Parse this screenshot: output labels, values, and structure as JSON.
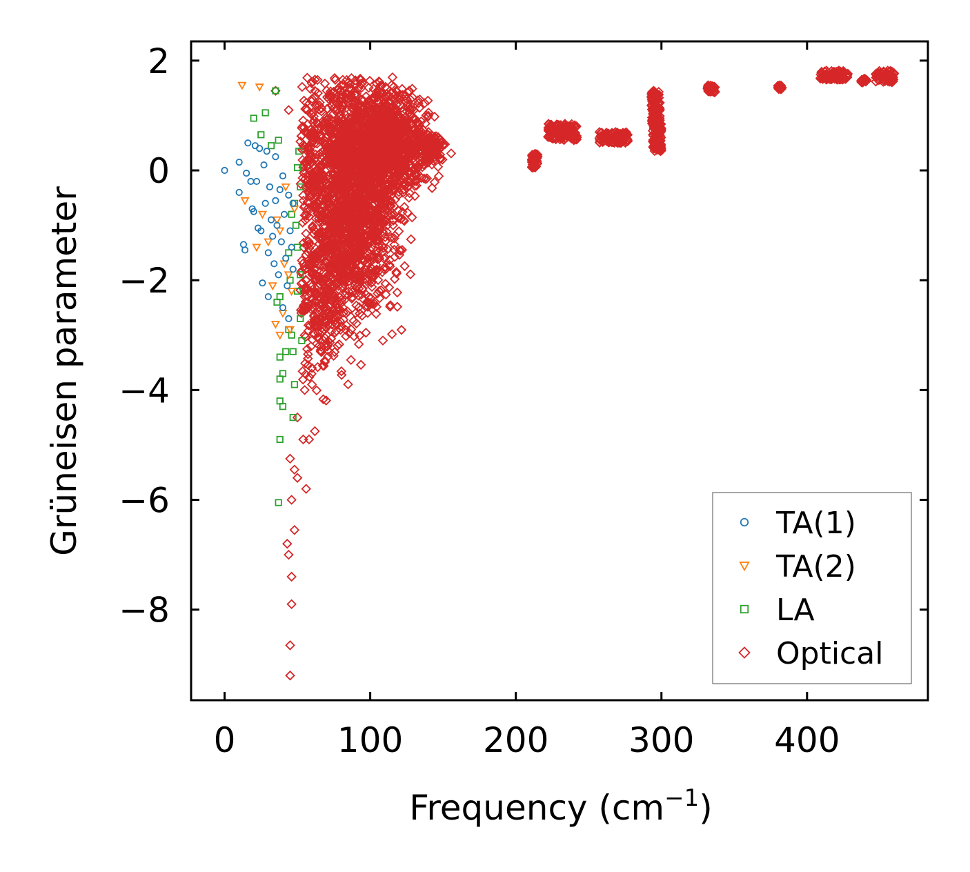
{
  "chart_data": {
    "type": "scatter",
    "title": "",
    "xlabel": "Frequency (cm",
    "xlabel_sup": "−1",
    "xlabel_close": ")",
    "ylabel": "Grüneisen parameter",
    "xlim": [
      -23,
      483
    ],
    "ylim": [
      -9.65,
      2.35
    ],
    "xticks": [
      0,
      100,
      200,
      300,
      400
    ],
    "xtick_labels": [
      "0",
      "100",
      "200",
      "300",
      "400"
    ],
    "yticks": [
      2,
      0,
      -2,
      -4,
      -6,
      -8
    ],
    "ytick_labels": [
      "2",
      "0",
      "−2",
      "−4",
      "−6",
      "−8"
    ],
    "grid": false,
    "legend_position": "lower-right",
    "series": [
      {
        "name": "TA(1)",
        "marker": "circle",
        "color": "#1f77b4",
        "points": [
          [
            0,
            0
          ],
          [
            10,
            0.15
          ],
          [
            10,
            -0.4
          ],
          [
            13,
            -1.35
          ],
          [
            14,
            -1.45
          ],
          [
            15,
            -0.05
          ],
          [
            16,
            0.5
          ],
          [
            18,
            -0.2
          ],
          [
            19,
            -0.7
          ],
          [
            20,
            -0.75
          ],
          [
            21,
            0.45
          ],
          [
            22,
            -0.2
          ],
          [
            23,
            -1.05
          ],
          [
            24,
            0.4
          ],
          [
            25,
            -1.1
          ],
          [
            26,
            -2.05
          ],
          [
            27,
            0.1
          ],
          [
            28,
            -0.6
          ],
          [
            29,
            0.35
          ],
          [
            30,
            -1.5
          ],
          [
            30,
            -2.3
          ],
          [
            31,
            -0.3
          ],
          [
            32,
            -0.9
          ],
          [
            33,
            -1.2
          ],
          [
            34,
            -1.7
          ],
          [
            35,
            0.25
          ],
          [
            35,
            -0.55
          ],
          [
            36,
            -1.0
          ],
          [
            37,
            -1.9
          ],
          [
            38,
            -0.35
          ],
          [
            39,
            -1.3
          ],
          [
            40,
            -2.5
          ],
          [
            40,
            -0.1
          ],
          [
            41,
            -0.8
          ],
          [
            42,
            -1.6
          ],
          [
            43,
            -2.1
          ],
          [
            44,
            -0.45
          ],
          [
            44,
            -2.7
          ],
          [
            45,
            -1.1
          ],
          [
            46,
            -1.4
          ],
          [
            47,
            -0.6
          ],
          [
            47,
            -1.8
          ]
        ]
      },
      {
        "name": "TA(2)",
        "marker": "triangle-down",
        "color": "#ff7f0e",
        "points": [
          [
            12,
            1.55
          ],
          [
            24,
            1.52
          ],
          [
            14,
            -0.55
          ],
          [
            22,
            -1.4
          ],
          [
            26,
            -0.8
          ],
          [
            30,
            -1.3
          ],
          [
            33,
            -2.1
          ],
          [
            35,
            -2.8
          ],
          [
            38,
            -3.0
          ],
          [
            40,
            -2.6
          ],
          [
            42,
            -0.3
          ],
          [
            44,
            -1.9
          ],
          [
            46,
            -2.2
          ],
          [
            48,
            -0.7
          ],
          [
            38,
            -1.1
          ],
          [
            36,
            -0.9
          ],
          [
            41,
            -1.7
          ],
          [
            45,
            -2.9
          ]
        ]
      },
      {
        "name": "LA",
        "marker": "square",
        "color": "#2ca02c",
        "points": [
          [
            20,
            0.95
          ],
          [
            25,
            0.65
          ],
          [
            28,
            1.05
          ],
          [
            32,
            0.45
          ],
          [
            35,
            1.45
          ],
          [
            37,
            0.55
          ],
          [
            38,
            -2.3
          ],
          [
            38,
            -3.4
          ],
          [
            38,
            -3.8
          ],
          [
            38,
            -4.2
          ],
          [
            38,
            -4.9
          ],
          [
            37,
            -6.05
          ],
          [
            40,
            -4.3
          ],
          [
            42,
            -3.3
          ],
          [
            44,
            -2.9
          ],
          [
            45,
            -2.0
          ],
          [
            46,
            -3.0
          ],
          [
            47,
            -3.3
          ],
          [
            47,
            -4.5
          ],
          [
            48,
            -0.6
          ],
          [
            48,
            -3.9
          ],
          [
            49,
            -1.0
          ],
          [
            50,
            0.05
          ],
          [
            50,
            -2.2
          ],
          [
            50,
            -1.4
          ],
          [
            51,
            0.35
          ],
          [
            52,
            -0.3
          ],
          [
            52,
            -1.9
          ],
          [
            52,
            -2.7
          ],
          [
            53,
            -3.1
          ],
          [
            40,
            -3.7
          ],
          [
            36,
            -2.4
          ],
          [
            44,
            -1.5
          ],
          [
            46,
            -0.8
          ]
        ]
      },
      {
        "name": "Optical",
        "marker": "diamond",
        "color": "#d62728",
        "points": [
          [
            35,
            1.45
          ],
          [
            44,
            1.1
          ],
          [
            45,
            -9.2
          ],
          [
            45,
            -8.65
          ],
          [
            46,
            -7.9
          ],
          [
            46,
            -7.4
          ],
          [
            44,
            -7.0
          ],
          [
            43,
            -6.8
          ],
          [
            48,
            -6.55
          ],
          [
            46,
            -6.0
          ],
          [
            56,
            -5.8
          ],
          [
            50,
            -5.6
          ],
          [
            48,
            -5.45
          ],
          [
            45,
            -5.25
          ],
          [
            54,
            -4.9
          ],
          [
            58,
            -4.9
          ],
          [
            62,
            -4.75
          ],
          [
            50,
            -4.5
          ],
          [
            55,
            -4.0
          ],
          [
            60,
            -3.9
          ],
          [
            60,
            -3.6
          ],
          [
            66,
            -3.3
          ],
          [
            70,
            -3.0
          ],
          [
            78,
            -2.5
          ],
          [
            82,
            -2.0
          ],
          [
            96,
            -1.85
          ],
          [
            88,
            -1.3
          ],
          [
            76,
            1.65
          ],
          [
            80,
            1.55
          ],
          [
            92,
            1.5
          ],
          [
            105,
            1.4
          ],
          [
            118,
            1.45
          ],
          [
            125,
            1.3
          ],
          [
            130,
            1.1
          ],
          [
            140,
            0.7
          ],
          [
            146,
            0.5
          ],
          [
            150,
            0.45
          ],
          [
            138,
            0.15
          ],
          [
            130,
            0.0
          ],
          [
            120,
            -0.2
          ],
          [
            110,
            -0.8
          ],
          [
            100,
            -1.0
          ],
          [
            85,
            -1.5
          ],
          [
            90,
            -1.4
          ]
        ],
        "clusters": [
          {
            "xc": 90,
            "yc": -0.6,
            "sx": 14,
            "sy": 0.9,
            "n": 1300
          },
          {
            "xc": 75,
            "yc": -1.6,
            "sx": 10,
            "sy": 0.8,
            "n": 350
          },
          {
            "xc": 65,
            "yc": -2.6,
            "sx": 7,
            "sy": 0.6,
            "n": 160
          },
          {
            "xc": 110,
            "yc": 0.6,
            "sx": 12,
            "sy": 0.45,
            "n": 650
          },
          {
            "xc": 125,
            "yc": 0.3,
            "sx": 10,
            "sy": 0.4,
            "n": 250
          },
          {
            "xc": 142,
            "yc": 0.45,
            "sx": 5,
            "sy": 0.12,
            "n": 90
          },
          {
            "xc": 80,
            "yc": 0.7,
            "sx": 10,
            "sy": 0.55,
            "n": 300
          },
          {
            "xc": 58,
            "yc": 0.2,
            "sx": 4,
            "sy": 0.7,
            "n": 120
          }
        ],
        "bands": [
          {
            "x0": 211,
            "x1": 215,
            "y0": 0.05,
            "y1": 0.3,
            "n": 60
          },
          {
            "x0": 222,
            "x1": 242,
            "y0": 0.55,
            "y1": 0.85,
            "n": 130
          },
          {
            "x0": 257,
            "x1": 277,
            "y0": 0.5,
            "y1": 0.7,
            "n": 120
          },
          {
            "x0": 293,
            "x1": 299,
            "y0": 0.85,
            "y1": 1.45,
            "n": 120
          },
          {
            "x0": 294,
            "x1": 300,
            "y0": 0.35,
            "y1": 0.85,
            "n": 120
          },
          {
            "x0": 331,
            "x1": 337,
            "y0": 1.42,
            "y1": 1.55,
            "n": 35
          },
          {
            "x0": 380,
            "x1": 383,
            "y0": 1.48,
            "y1": 1.56,
            "n": 20
          },
          {
            "x0": 409,
            "x1": 428,
            "y0": 1.65,
            "y1": 1.82,
            "n": 90
          },
          {
            "x0": 437,
            "x1": 441,
            "y0": 1.6,
            "y1": 1.68,
            "n": 15
          },
          {
            "x0": 447,
            "x1": 460,
            "y0": 1.6,
            "y1": 1.82,
            "n": 70
          }
        ]
      }
    ]
  }
}
